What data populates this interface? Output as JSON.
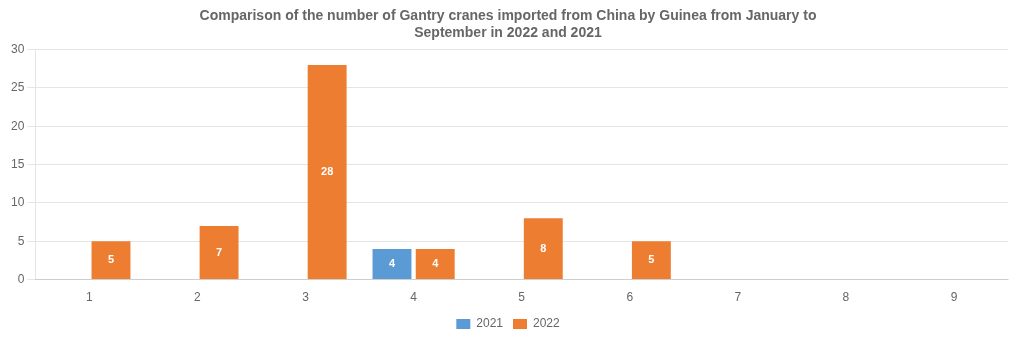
{
  "chart_data": {
    "type": "bar",
    "title": "Comparison of the number of Gantry cranes imported from China by Guinea from January to\nSeptember in 2022 and 2021",
    "categories": [
      "1",
      "2",
      "3",
      "4",
      "5",
      "6",
      "7",
      "8",
      "9"
    ],
    "series": [
      {
        "name": "2021",
        "color": "#5b9bd5",
        "values": [
          0,
          0,
          0,
          4,
          0,
          0,
          0,
          0,
          0
        ]
      },
      {
        "name": "2022",
        "color": "#ed7d31",
        "values": [
          5,
          7,
          28,
          4,
          8,
          5,
          0,
          0,
          0
        ]
      }
    ],
    "ylim": [
      0,
      30
    ],
    "yticks": [
      0,
      5,
      10,
      15,
      20,
      25,
      30
    ],
    "grid": true,
    "legend": "bottom",
    "data_labels": true
  }
}
